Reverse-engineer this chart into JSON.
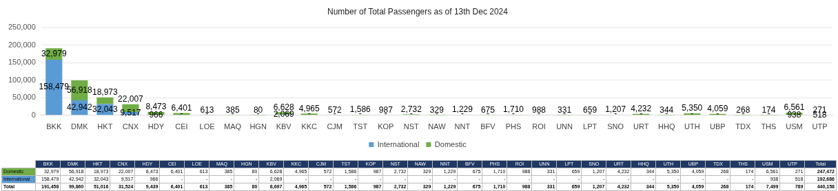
{
  "chart_data": {
    "type": "bar",
    "title": "Number of Total Passengers as of 13th Dec 2024",
    "stacked": true,
    "grid": "y",
    "legend": "bottom",
    "categories": [
      "BKK",
      "DMK",
      "HKT",
      "CNX",
      "HDY",
      "CEI",
      "LOE",
      "MAQ",
      "HGN",
      "KBV",
      "KKC",
      "CJM",
      "TST",
      "KOP",
      "NST",
      "NAW",
      "NNT",
      "BFV",
      "PHS",
      "ROI",
      "UNN",
      "LPT",
      "SNO",
      "URT",
      "HHQ",
      "UTH",
      "UBP",
      "TDX",
      "THS",
      "USM",
      "UTP"
    ],
    "series": [
      {
        "name": "International",
        "color": "#5b9bd5",
        "values": [
          158479,
          42942,
          32043,
          9517,
          966,
          null,
          null,
          null,
          null,
          2069,
          null,
          null,
          null,
          null,
          null,
          null,
          null,
          null,
          null,
          null,
          null,
          null,
          null,
          null,
          null,
          null,
          null,
          null,
          null,
          938,
          518
        ],
        "value_labels": [
          "158,479",
          "42,942",
          "32,043",
          "9,517",
          "966",
          "-",
          "-",
          "-",
          "-",
          "2,069",
          "-",
          "-",
          "-",
          "-",
          "-",
          "-",
          "-",
          "-",
          "-",
          "-",
          "-",
          "-",
          "-",
          "-",
          "-",
          "-",
          "-",
          "-",
          "-",
          "938",
          "518"
        ]
      },
      {
        "name": "Domestic",
        "color": "#70ad47",
        "values": [
          32979,
          56918,
          18973,
          22007,
          8473,
          6401,
          613,
          385,
          80,
          6628,
          4965,
          572,
          1586,
          987,
          2732,
          329,
          1229,
          675,
          1710,
          988,
          331,
          659,
          1207,
          4232,
          344,
          5350,
          4059,
          268,
          174,
          6561,
          271
        ],
        "value_labels": [
          "32,979",
          "56,918",
          "18,973",
          "22,007",
          "8,473",
          "6,401",
          "613",
          "385",
          "80",
          "6,628",
          "4,965",
          "572",
          "1,586",
          "987",
          "2,732",
          "329",
          "1,229",
          "675",
          "1,710",
          "988",
          "331",
          "659",
          "1,207",
          "4,232",
          "344",
          "5,350",
          "4,059",
          "268",
          "174",
          "6,561",
          "271"
        ]
      }
    ],
    "ylim": [
      0,
      250000
    ],
    "yticks": [
      {
        "value": 0,
        "label": "0"
      },
      {
        "value": 50000,
        "label": "50,000"
      },
      {
        "value": 100000,
        "label": "100,000"
      },
      {
        "value": 150000,
        "label": "150,000"
      },
      {
        "value": 200000,
        "label": "200,000"
      },
      {
        "value": 250000,
        "label": "250,000"
      }
    ],
    "annotations": [
      "Total",
      "192,686",
      "247,472",
      "440,158",
      "191,458",
      "99,860",
      "51,016",
      "31,524",
      "9,439",
      "6,401",
      "613",
      "385",
      "80",
      "8,697",
      "4,965",
      "572",
      "1,586",
      "987",
      "2,732",
      "329",
      "1,229",
      "675",
      "1,710",
      "988",
      "331",
      "659",
      "1,207",
      "4,232",
      "344",
      "5,350",
      "4,059",
      "268",
      "174",
      "7,499",
      "789"
    ]
  }
}
